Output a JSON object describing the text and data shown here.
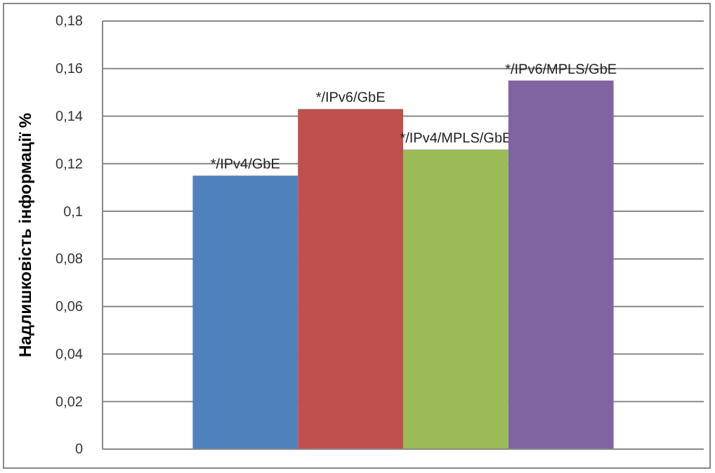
{
  "chart_data": {
    "type": "bar",
    "ylabel": "Надлишковість інформації  %",
    "categories": [
      null
    ],
    "series": [
      {
        "name": "*/IPv4/GbE",
        "color": "#4f81bd",
        "values": [
          0.115
        ]
      },
      {
        "name": "*/IPv6/GbE",
        "color": "#c0504d",
        "values": [
          0.143
        ]
      },
      {
        "name": "*/IPv4/MPLS/GbE",
        "color": "#9bbb59",
        "values": [
          0.126
        ]
      },
      {
        "name": "*/IPv6/MPLS/GbE",
        "color": "#8064a2",
        "values": [
          0.155
        ]
      }
    ],
    "ylim": [
      0,
      0.18
    ],
    "yticks": [
      0,
      {
        "value": 0.02,
        "label": "0,02"
      },
      {
        "value": 0.04,
        "label": "0,04"
      },
      {
        "value": 0.06,
        "label": "0,06"
      },
      {
        "value": 0.08,
        "label": "0,08"
      },
      {
        "value": 0.1,
        "label": "0,1"
      },
      {
        "value": 0.12,
        "label": "0,12"
      },
      {
        "value": 0.14,
        "label": "0,14"
      },
      {
        "value": 0.16,
        "label": "0,16"
      },
      {
        "value": 0.18,
        "label": "0,18"
      }
    ],
    "grid": "y",
    "legend": false
  }
}
